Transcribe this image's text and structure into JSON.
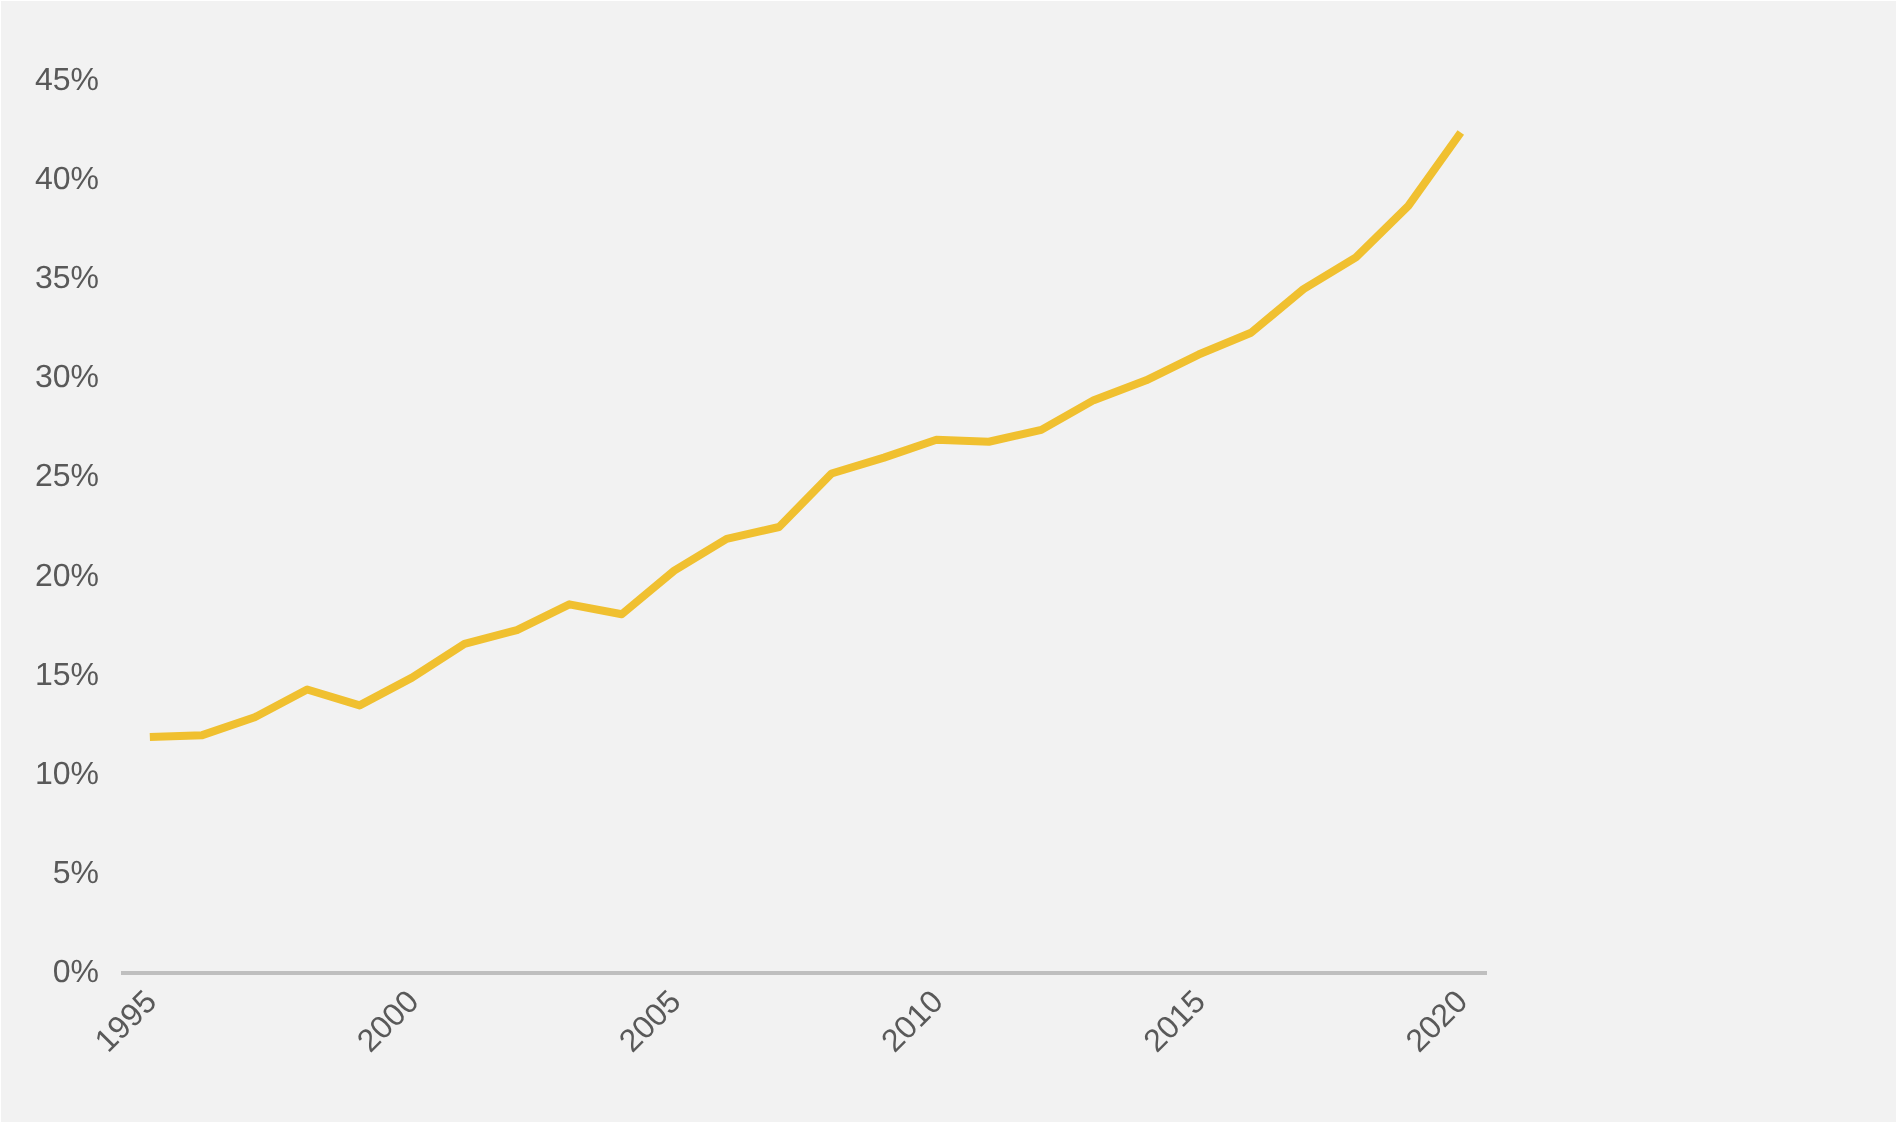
{
  "chart_data": {
    "type": "line",
    "x": [
      1995,
      1996,
      1997,
      1998,
      1999,
      2000,
      2001,
      2002,
      2003,
      2004,
      2005,
      2006,
      2007,
      2008,
      2009,
      2010,
      2011,
      2012,
      2013,
      2014,
      2015,
      2016,
      2017,
      2018,
      2019,
      2020
    ],
    "series": [
      {
        "color": "#f0c030",
        "values": [
          11.9,
          12.0,
          12.9,
          14.3,
          13.5,
          14.9,
          16.6,
          17.3,
          18.6,
          18.1,
          20.3,
          21.9,
          22.5,
          25.2,
          26.0,
          26.9,
          26.8,
          27.4,
          28.9,
          29.9,
          31.2,
          32.3,
          34.5,
          36.1,
          38.7,
          42.4
        ]
      }
    ],
    "xlim": [
      1994.45,
      2020.5
    ],
    "ylim": [
      0,
      45
    ],
    "xticks": [
      1995,
      2000,
      2005,
      2010,
      2015,
      2020
    ],
    "yticks": [
      {
        "value": 0,
        "label": "0%"
      },
      {
        "value": 5,
        "label": "5%"
      },
      {
        "value": 10,
        "label": "10%"
      },
      {
        "value": 15,
        "label": "15%"
      },
      {
        "value": 20,
        "label": "20%"
      },
      {
        "value": 25,
        "label": "25%"
      },
      {
        "value": 30,
        "label": "30%"
      },
      {
        "value": 35,
        "label": "35%"
      },
      {
        "value": 40,
        "label": "40%"
      },
      {
        "value": 45,
        "label": "45%"
      }
    ],
    "grid": false,
    "marker": "none",
    "line_style": "solid"
  }
}
